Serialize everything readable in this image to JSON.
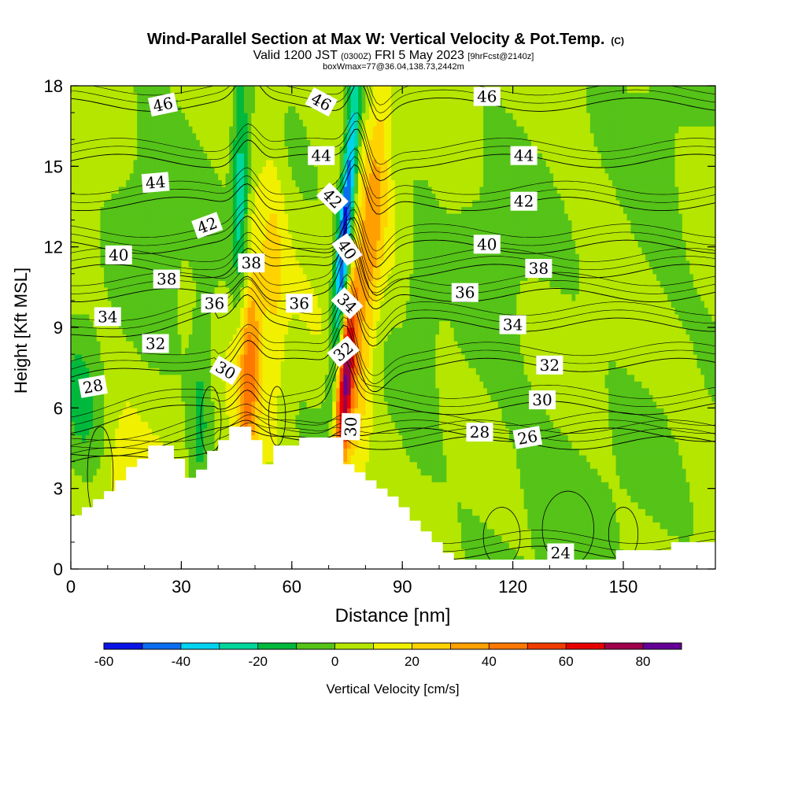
{
  "chart_data": {
    "type": "heatmap",
    "title": "Wind-Parallel Section at Max W: Vertical Velocity & Pot.Temp.",
    "title_suffix": "(C)",
    "subtitle_valid": "Valid 1200 JST",
    "subtitle_utc": "(0300Z)",
    "subtitle_date": "FRI 5 May 2023",
    "subtitle_fcst": "[9hrFcst@2140z]",
    "subtitle_box": "boxWmax=77@36.04,138.73,2442m",
    "xlabel": "Distance [nm]",
    "ylabel": "Height [Kft MSL]",
    "xlim": [
      0,
      175
    ],
    "ylim": [
      0,
      18
    ],
    "x_ticks": [
      0,
      30,
      60,
      90,
      120,
      150
    ],
    "y_ticks": [
      0,
      3,
      6,
      9,
      12,
      15,
      18
    ],
    "colorbar": {
      "label": "Vertical Velocity [cm/s]",
      "tick_values": [
        -60,
        -40,
        -20,
        0,
        20,
        40,
        60,
        80
      ],
      "tick_labels": [
        "-60",
        "-40",
        "-20",
        "0",
        "20",
        "40",
        "60",
        "80"
      ],
      "bins": [
        {
          "from": -60,
          "to": -50,
          "color": "#0a14e6"
        },
        {
          "from": -50,
          "to": -40,
          "color": "#0a6ef0"
        },
        {
          "from": -40,
          "to": -30,
          "color": "#00d2f0"
        },
        {
          "from": -30,
          "to": -20,
          "color": "#00d79b"
        },
        {
          "from": -20,
          "to": -10,
          "color": "#00b93c"
        },
        {
          "from": -10,
          "to": 0,
          "color": "#55c318"
        },
        {
          "from": 0,
          "to": 10,
          "color": "#b4e600"
        },
        {
          "from": 10,
          "to": 20,
          "color": "#f0f000"
        },
        {
          "from": 20,
          "to": 30,
          "color": "#ffd200"
        },
        {
          "from": 30,
          "to": 40,
          "color": "#ffa000"
        },
        {
          "from": 40,
          "to": 50,
          "color": "#ff7800"
        },
        {
          "from": 50,
          "to": 60,
          "color": "#f03c00"
        },
        {
          "from": 60,
          "to": 70,
          "color": "#e60000"
        },
        {
          "from": 70,
          "to": 80,
          "color": "#a0004b"
        },
        {
          "from": 80,
          "to": 90,
          "color": "#640096"
        }
      ]
    },
    "theta_contours": {
      "units": "C",
      "levels": [
        24,
        26,
        28,
        30,
        32,
        34,
        36,
        38,
        40,
        42,
        44,
        46
      ],
      "labels": [
        {
          "text": "46",
          "x": 25,
          "y": 17.3,
          "angle": -12
        },
        {
          "text": "46",
          "x": 68,
          "y": 17.4,
          "angle": 28
        },
        {
          "text": "46",
          "x": 113,
          "y": 17.6,
          "angle": 0
        },
        {
          "text": "44",
          "x": 23,
          "y": 14.4,
          "angle": -5
        },
        {
          "text": "44",
          "x": 68,
          "y": 15.4,
          "angle": 0
        },
        {
          "text": "44",
          "x": 123,
          "y": 15.4,
          "angle": 0
        },
        {
          "text": "42",
          "x": 37,
          "y": 12.8,
          "angle": -20
        },
        {
          "text": "42",
          "x": 71,
          "y": 13.8,
          "angle": 45
        },
        {
          "text": "42",
          "x": 123,
          "y": 13.7,
          "angle": 0
        },
        {
          "text": "40",
          "x": 13,
          "y": 11.7,
          "angle": 0
        },
        {
          "text": "40",
          "x": 75,
          "y": 11.9,
          "angle": 55
        },
        {
          "text": "40",
          "x": 113,
          "y": 12.1,
          "angle": 0
        },
        {
          "text": "38",
          "x": 26,
          "y": 10.8,
          "angle": 0
        },
        {
          "text": "38",
          "x": 49,
          "y": 11.4,
          "angle": 0
        },
        {
          "text": "38",
          "x": 127,
          "y": 11.2,
          "angle": 0
        },
        {
          "text": "36",
          "x": 39,
          "y": 9.9,
          "angle": 0
        },
        {
          "text": "36",
          "x": 62,
          "y": 9.9,
          "angle": 0
        },
        {
          "text": "36",
          "x": 107,
          "y": 10.3,
          "angle": 0
        },
        {
          "text": "34",
          "x": 10,
          "y": 9.4,
          "angle": 0
        },
        {
          "text": "34",
          "x": 75,
          "y": 9.9,
          "angle": 45
        },
        {
          "text": "34",
          "x": 120,
          "y": 9.1,
          "angle": 0
        },
        {
          "text": "32",
          "x": 23,
          "y": 8.4,
          "angle": 0
        },
        {
          "text": "32",
          "x": 74,
          "y": 8.1,
          "angle": -40
        },
        {
          "text": "32",
          "x": 130,
          "y": 7.6,
          "angle": 0
        },
        {
          "text": "30",
          "x": 42,
          "y": 7.4,
          "angle": 30
        },
        {
          "text": "30",
          "x": 76,
          "y": 5.3,
          "angle": -88
        },
        {
          "text": "30",
          "x": 128,
          "y": 6.3,
          "angle": 0
        },
        {
          "text": "28",
          "x": 6,
          "y": 6.8,
          "angle": -10
        },
        {
          "text": "28",
          "x": 111,
          "y": 5.1,
          "angle": 0
        },
        {
          "text": "26",
          "x": 124,
          "y": 4.9,
          "angle": -10
        },
        {
          "text": "24",
          "x": 133,
          "y": 0.6,
          "angle": 0
        }
      ]
    },
    "terrain": [
      [
        0,
        2
      ],
      [
        3,
        2
      ],
      [
        3,
        2.3
      ],
      [
        6,
        2.3
      ],
      [
        6,
        2.6
      ],
      [
        9,
        2.6
      ],
      [
        9,
        2.9
      ],
      [
        12,
        2.9
      ],
      [
        12,
        3.3
      ],
      [
        15,
        3.3
      ],
      [
        15,
        3.8
      ],
      [
        18,
        3.8
      ],
      [
        18,
        4.1
      ],
      [
        21,
        4.1
      ],
      [
        21,
        4.6
      ],
      [
        28,
        4.6
      ],
      [
        28,
        4.1
      ],
      [
        31,
        4.1
      ],
      [
        31,
        3.4
      ],
      [
        34,
        3.4
      ],
      [
        34,
        3.7
      ],
      [
        37,
        3.7
      ],
      [
        37,
        4.4
      ],
      [
        40,
        4.4
      ],
      [
        40,
        4.8
      ],
      [
        43,
        4.8
      ],
      [
        43,
        5.3
      ],
      [
        49,
        5.3
      ],
      [
        49,
        4.8
      ],
      [
        52,
        4.8
      ],
      [
        52,
        3.9
      ],
      [
        55,
        3.9
      ],
      [
        55,
        4.6
      ],
      [
        62,
        4.6
      ],
      [
        62,
        4.9
      ],
      [
        74,
        4.9
      ],
      [
        74,
        3.9
      ],
      [
        77,
        3.9
      ],
      [
        77,
        3.6
      ],
      [
        80,
        3.6
      ],
      [
        80,
        3.3
      ],
      [
        83,
        3.3
      ],
      [
        83,
        3.0
      ],
      [
        86,
        3.0
      ],
      [
        86,
        2.7
      ],
      [
        89,
        2.7
      ],
      [
        89,
        2.3
      ],
      [
        92,
        2.3
      ],
      [
        92,
        1.8
      ],
      [
        95,
        1.8
      ],
      [
        95,
        1.4
      ],
      [
        98,
        1.4
      ],
      [
        98,
        1.0
      ],
      [
        101,
        1.0
      ],
      [
        101,
        0.6
      ],
      [
        104,
        0.6
      ],
      [
        104,
        0.35
      ],
      [
        148,
        0.35
      ],
      [
        148,
        0.7
      ],
      [
        163,
        0.7
      ],
      [
        163,
        1.0
      ],
      [
        175,
        1.0
      ],
      [
        175,
        0
      ],
      [
        0,
        0
      ]
    ],
    "w_field_blobs": [
      {
        "cx": 74,
        "cy": 6.3,
        "rx": 0.9,
        "ry": 2.2,
        "w": 80
      },
      {
        "cx": 74,
        "cy": 7.2,
        "rx": 1.8,
        "ry": 3.2,
        "w": 60
      },
      {
        "cx": 47,
        "cy": 7.8,
        "rx": 2.2,
        "ry": 2.6,
        "w": 45
      },
      {
        "cx": 71,
        "cy": 13.8,
        "rx": 1.2,
        "ry": 1.6,
        "w": -55
      },
      {
        "cx": 70,
        "cy": 16.3,
        "rx": 1.6,
        "ry": 1.7,
        "w": -35
      },
      {
        "cx": 46,
        "cy": 14.5,
        "rx": 1.4,
        "ry": 2.8,
        "w": -30
      },
      {
        "cx": 36,
        "cy": 5.3,
        "rx": 2.0,
        "ry": 2.2,
        "w": -15
      },
      {
        "cx": 134,
        "cy": 5.0,
        "rx": 5.5,
        "ry": 3.0,
        "w": -5
      }
    ]
  }
}
